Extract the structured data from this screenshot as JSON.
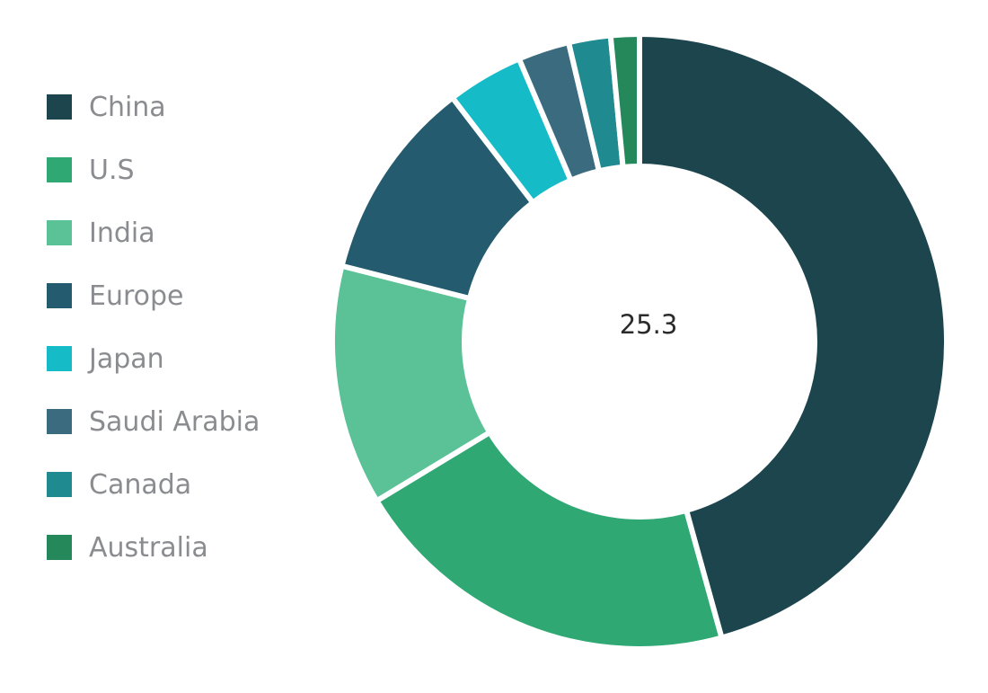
{
  "chart_data": {
    "type": "pie",
    "subtype": "donut",
    "center_label": "25.3",
    "legend_position": "left",
    "slices": [
      {
        "label": "China",
        "value": 45.6,
        "color": "#1d454e"
      },
      {
        "label": "U.S",
        "value": 20.6,
        "color": "#2fa873"
      },
      {
        "label": "India",
        "value": 12.6,
        "color": "#5bc196"
      },
      {
        "label": "Europe",
        "value": 10.6,
        "color": "#255b6e"
      },
      {
        "label": "Japan",
        "value": 4.0,
        "color": "#15bcc8"
      },
      {
        "label": "Saudi Arabia",
        "value": 2.7,
        "color": "#3a6b7e"
      },
      {
        "label": "Canada",
        "value": 2.2,
        "color": "#1f8a8f"
      },
      {
        "label": "Australia",
        "value": 1.5,
        "color": "#24885a"
      }
    ]
  }
}
